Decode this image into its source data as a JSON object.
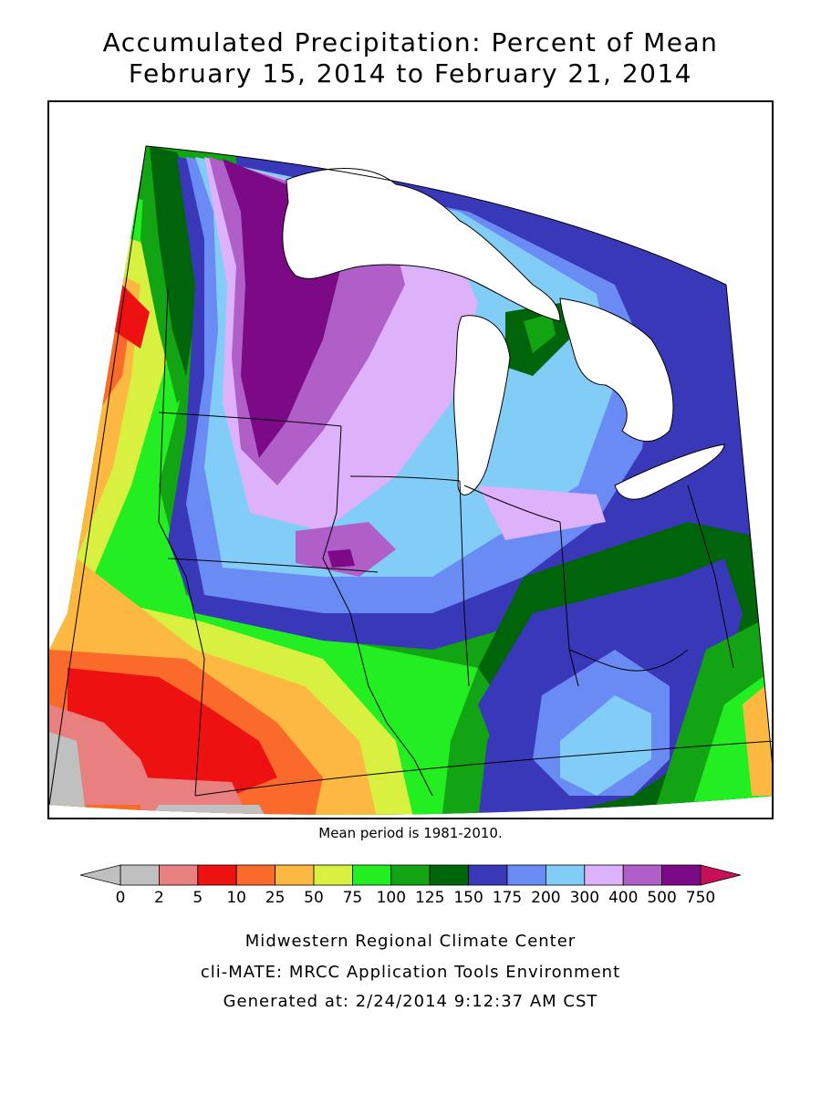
{
  "title": {
    "line1": "Accumulated Precipitation: Percent of Mean",
    "line2": "February 15, 2014 to February 21, 2014"
  },
  "map": {
    "note": "Mean period is 1981-2010.",
    "colors": {
      "lt0": "#c0c0c0",
      "c0_2": "#c0c0c0",
      "c2_5": "#e88080",
      "c5_10": "#ee1111",
      "c10_25": "#fa6a2a",
      "c25_50": "#fcb840",
      "c50_75": "#d8f040",
      "c75_100": "#22ee22",
      "c100_125": "#12a412",
      "c125_150": "#00640a",
      "c150_175": "#3838b8",
      "c175_200": "#6a8af4",
      "c200_300": "#82ccf8",
      "c300_400": "#ddb2fa",
      "c400_500": "#b05ec8",
      "c500_750": "#7c0a86",
      "gt750": "#c8105a",
      "lake": "#ffffff"
    }
  },
  "legend": {
    "labels": [
      "0",
      "2",
      "5",
      "10",
      "25",
      "50",
      "75",
      "100",
      "125",
      "150",
      "175",
      "200",
      "300",
      "400",
      "500",
      "750"
    ],
    "colors": [
      "#c0c0c0",
      "#e88080",
      "#ee1111",
      "#fa6a2a",
      "#fcb840",
      "#d8f040",
      "#22ee22",
      "#12a412",
      "#00640a",
      "#3838b8",
      "#6a8af4",
      "#82ccf8",
      "#ddb2fa",
      "#b05ec8",
      "#7c0a86"
    ],
    "low_arrow_color": "#c0c0c0",
    "high_arrow_color": "#c8105a"
  },
  "footer": {
    "line1": "Midwestern Regional Climate Center",
    "line2": "cli-MATE: MRCC Application Tools Environment",
    "line3": "Generated at: 2/24/2014 9:12:37 AM CST"
  }
}
